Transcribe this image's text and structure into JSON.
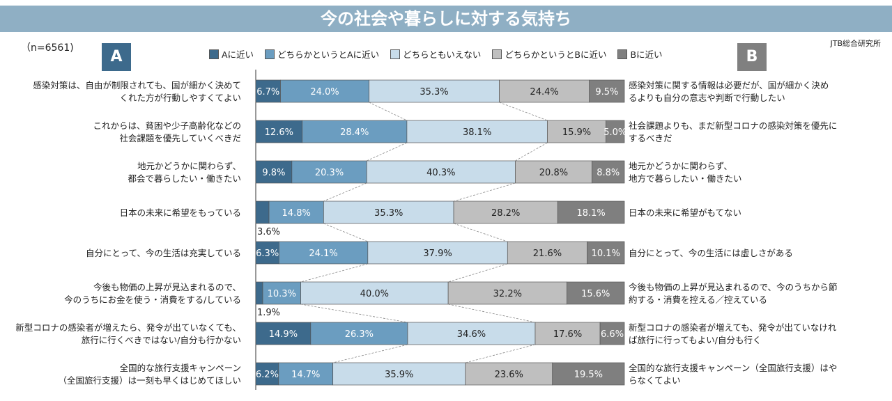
{
  "title": "今の社会や暮らしに対する気持ち",
  "sample": "（n=6561)",
  "source": "JTB総合研究所",
  "side_a": "A",
  "side_b": "B",
  "colors": [
    "#3d6a8c",
    "#6b9dc0",
    "#c8dcea",
    "#bfbfbf",
    "#7f7f7f"
  ],
  "chart_data": {
    "type": "bar",
    "orientation": "horizontal",
    "stacked": true,
    "percent": true,
    "legend_position": "top",
    "series_names": [
      "Aに近い",
      "どちらかというとAに近い",
      "どちらともいえない",
      "どちらかというとBに近い",
      "Bに近い"
    ],
    "rows": [
      {
        "a": [
          "感染対策は、自由が制限されても、国が細かく決めて",
          "くれた方が行動しやすくてよい"
        ],
        "b": [
          "感染対策に関する情報は必要だが、国が細かく決め",
          "るよりも自分の意志や判断で行動したい"
        ],
        "values": [
          6.7,
          24.0,
          35.3,
          24.4,
          9.5
        ],
        "labels": [
          "6.7%",
          "24.0%",
          "35.3%",
          "24.4%",
          "9.5%"
        ]
      },
      {
        "a": [
          "これからは、貧困や少子高齢化などの",
          "社会課題を優先していくべきだ"
        ],
        "b": [
          "社会課題よりも、まだ新型コロナの感染対策を優先に",
          "するべきだ"
        ],
        "values": [
          12.6,
          28.4,
          38.1,
          15.9,
          5.0
        ],
        "labels": [
          "12.6%",
          "28.4%",
          "38.1%",
          "15.9%",
          "5.0%"
        ]
      },
      {
        "a": [
          "地元かどうかに関わらず、",
          "都会で暮らしたい・働きたい"
        ],
        "b": [
          "地元かどうかに関わらず、",
          "地方で暮らしたい・働きたい"
        ],
        "values": [
          9.8,
          20.3,
          40.3,
          20.8,
          8.8
        ],
        "labels": [
          "9.8%",
          "20.3%",
          "40.3%",
          "20.8%",
          "8.8%"
        ]
      },
      {
        "a": [
          "日本の未来に希望をもっている"
        ],
        "b": [
          "日本の未来に希望がもてない"
        ],
        "values": [
          3.6,
          14.8,
          35.3,
          28.2,
          18.1
        ],
        "labels": [
          "3.6%",
          "14.8%",
          "35.3%",
          "28.2%",
          "18.1%"
        ]
      },
      {
        "a": [
          "自分にとって、今の生活は充実している"
        ],
        "b": [
          "自分にとって、今の生活には虚しさがある"
        ],
        "values": [
          6.3,
          24.1,
          37.9,
          21.6,
          10.1
        ],
        "labels": [
          "6.3%",
          "24.1%",
          "37.9%",
          "21.6%",
          "10.1%"
        ]
      },
      {
        "a": [
          "今後も物価の上昇が見込まれるので、",
          "今のうちにお金を使う・消費をする/している"
        ],
        "b": [
          "今後も物価の上昇が見込まれるので、今のうちから節",
          "約する・消費を控える／控えている"
        ],
        "values": [
          1.9,
          10.3,
          40.0,
          32.2,
          15.6
        ],
        "labels": [
          "1.9%",
          "10.3%",
          "40.0%",
          "32.2%",
          "15.6%"
        ]
      },
      {
        "a": [
          "新型コロナの感染者が増えたら、発令が出ていなくても、",
          "旅行に行くべきではない/自分も行かない"
        ],
        "b": [
          "新型コロナの感染者が増えても、発令が出ていなけれ",
          "ば旅行に行ってもよい/自分も行く"
        ],
        "values": [
          14.9,
          26.3,
          34.6,
          17.6,
          6.6
        ],
        "labels": [
          "14.9%",
          "26.3%",
          "34.6%",
          "17.6%",
          "6.6%"
        ]
      },
      {
        "a": [
          "全国的な旅行支援キャンペーン",
          "（全国旅行支援）は一刻も早くはじめてほしい"
        ],
        "b": [
          "全国的な旅行支援キャンペーン（全国旅行支援）はや",
          "らなくてよい"
        ],
        "values": [
          6.2,
          14.7,
          35.9,
          23.6,
          19.5
        ],
        "labels": [
          "6.2%",
          "14.7%",
          "35.9%",
          "23.6%",
          "19.5%"
        ]
      }
    ]
  }
}
